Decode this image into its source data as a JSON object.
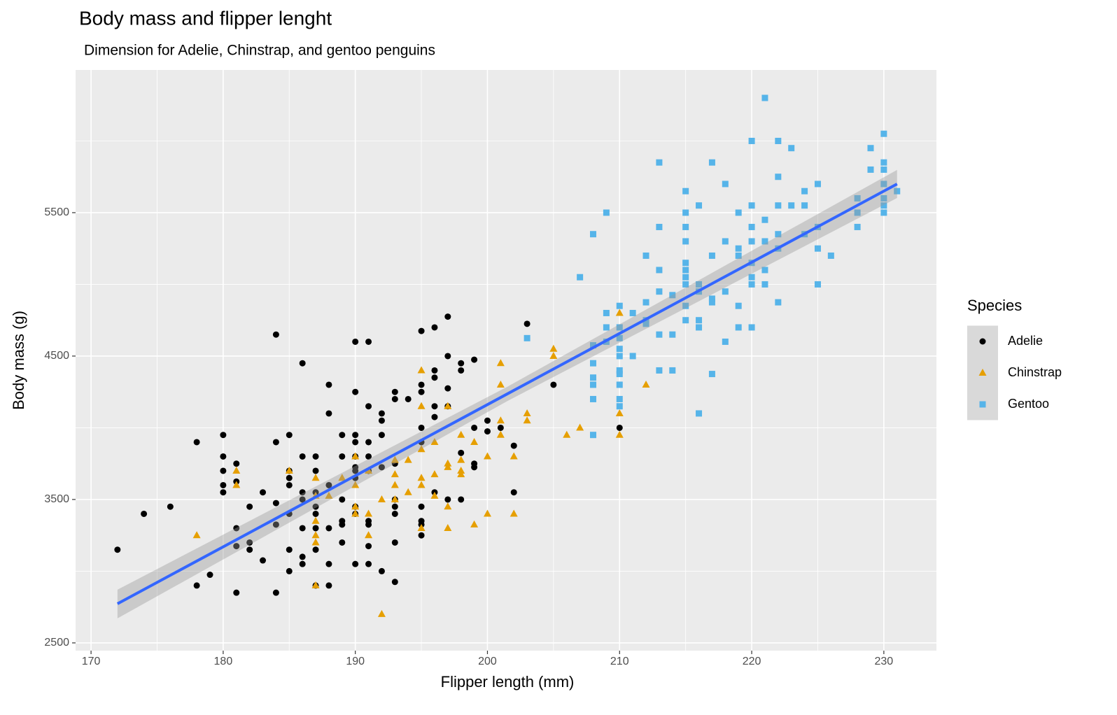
{
  "chart_data": {
    "type": "scatter",
    "title": "Body mass and flipper lenght",
    "subtitle": "Dimension for Adelie, Chinstrap, and gentoo penguins",
    "x_label": "Flipper length (mm)",
    "y_label": "Body mass (g)",
    "legend_title": "Species",
    "legend_position": "right",
    "grid": true,
    "xlim": [
      168.83,
      233.98
    ],
    "ylim": [
      2446,
      6495
    ],
    "xticks": [
      170,
      180,
      190,
      200,
      210,
      220,
      230
    ],
    "yticks": [
      2500,
      3500,
      4500,
      5500
    ],
    "xminor": [
      175,
      185,
      195,
      205,
      215,
      225
    ],
    "yminor": [
      3000,
      4000,
      5000,
      6000
    ],
    "series": [
      {
        "name": "Adelie",
        "color": "#000000",
        "shape": "circle",
        "x": [
          172,
          174,
          176,
          178,
          178,
          179,
          180,
          180,
          180,
          180,
          180,
          181,
          181,
          181,
          181,
          181,
          182,
          182,
          182,
          183,
          183,
          184,
          184,
          184,
          184,
          184,
          185,
          185,
          185,
          185,
          185,
          185,
          185,
          186,
          186,
          186,
          186,
          186,
          186,
          186,
          187,
          187,
          187,
          187,
          187,
          187,
          187,
          187,
          188,
          188,
          188,
          188,
          188,
          188,
          189,
          189,
          189,
          189,
          189,
          189,
          190,
          190,
          190,
          190,
          190,
          190,
          190,
          190,
          190,
          190,
          190,
          191,
          191,
          191,
          191,
          191,
          191,
          191,
          191,
          191,
          192,
          192,
          192,
          192,
          192,
          193,
          193,
          193,
          193,
          193,
          193,
          193,
          193,
          194,
          195,
          195,
          195,
          195,
          195,
          195,
          195,
          195,
          195,
          196,
          196,
          196,
          196,
          196,
          196,
          197,
          197,
          197,
          197,
          197,
          198,
          198,
          198,
          198,
          199,
          199,
          199,
          199,
          200,
          200,
          201,
          202,
          202,
          203,
          205,
          210
        ],
        "values": [
          3150,
          3400,
          3450,
          3900,
          2900,
          2975,
          3950,
          3800,
          3700,
          3600,
          3550,
          3750,
          3625,
          3300,
          3175,
          2850,
          3450,
          3200,
          3150,
          3550,
          3075,
          4650,
          3900,
          3475,
          3325,
          2850,
          3950,
          3700,
          3650,
          3600,
          3400,
          3150,
          3000,
          4450,
          3800,
          3550,
          3500,
          3300,
          3100,
          3050,
          3800,
          3700,
          3550,
          3450,
          3400,
          3300,
          3150,
          2900,
          4300,
          4100,
          3600,
          3300,
          3050,
          2900,
          3950,
          3800,
          3500,
          3350,
          3325,
          3200,
          4600,
          4250,
          3950,
          3900,
          3800,
          3725,
          3700,
          3650,
          3450,
          3400,
          3050,
          4600,
          4150,
          3900,
          3800,
          3700,
          3350,
          3325,
          3175,
          3050,
          4100,
          4050,
          3950,
          3725,
          3000,
          4250,
          4200,
          3750,
          3500,
          3450,
          3400,
          3200,
          2925,
          4200,
          4675,
          4300,
          4250,
          4000,
          3900,
          3450,
          3350,
          3325,
          3250,
          4700,
          4400,
          4350,
          4150,
          4075,
          3550,
          4775,
          4500,
          4275,
          4150,
          3500,
          4450,
          4400,
          3825,
          3500,
          4475,
          4000,
          3750,
          3725,
          4050,
          3975,
          4000,
          3875,
          3550,
          4725,
          4300,
          4000
        ]
      },
      {
        "name": "Chinstrap",
        "color": "#E69F00",
        "shape": "triangle",
        "x": [
          178,
          181,
          181,
          185,
          187,
          187,
          187,
          187,
          187,
          187,
          188,
          189,
          190,
          190,
          190,
          190,
          191,
          191,
          191,
          192,
          192,
          193,
          193,
          193,
          193,
          194,
          194,
          195,
          195,
          195,
          195,
          195,
          195,
          196,
          196,
          196,
          197,
          197,
          197,
          197,
          197,
          198,
          198,
          198,
          198,
          199,
          199,
          200,
          200,
          201,
          201,
          201,
          201,
          202,
          202,
          203,
          203,
          205,
          205,
          206,
          207,
          210,
          210,
          210,
          212
        ],
        "values": [
          3250,
          3700,
          3600,
          3700,
          3650,
          3525,
          3350,
          3250,
          3200,
          2900,
          3525,
          3650,
          3800,
          3600,
          3450,
          3400,
          3700,
          3400,
          3250,
          3500,
          2700,
          3775,
          3675,
          3600,
          3500,
          3775,
          3550,
          4400,
          4150,
          3850,
          3650,
          3600,
          3300,
          3900,
          3675,
          3525,
          4150,
          3750,
          3725,
          3450,
          3300,
          3950,
          3775,
          3700,
          3675,
          3900,
          3325,
          3800,
          3400,
          4450,
          4300,
          4050,
          3950,
          3800,
          3400,
          4100,
          4050,
          4550,
          4500,
          3950,
          4000,
          4800,
          4100,
          3950,
          4300
        ]
      },
      {
        "name": "Gentoo",
        "color": "#56B4E9",
        "shape": "square",
        "x": [
          203,
          207,
          208,
          208,
          208,
          208,
          208,
          208,
          208,
          209,
          209,
          209,
          209,
          210,
          210,
          210,
          210,
          210,
          210,
          210,
          210,
          210,
          210,
          211,
          211,
          212,
          212,
          212,
          212,
          213,
          213,
          213,
          213,
          213,
          213,
          214,
          214,
          214,
          215,
          215,
          215,
          215,
          215,
          215,
          215,
          215,
          215,
          215,
          216,
          216,
          216,
          216,
          216,
          216,
          217,
          217,
          217,
          217,
          217,
          218,
          218,
          218,
          218,
          219,
          219,
          219,
          219,
          219,
          220,
          220,
          220,
          220,
          220,
          220,
          220,
          220,
          221,
          221,
          221,
          221,
          221,
          222,
          222,
          222,
          222,
          222,
          222,
          223,
          223,
          224,
          224,
          224,
          225,
          225,
          225,
          225,
          226,
          228,
          228,
          228,
          229,
          229,
          230,
          230,
          230,
          230,
          230,
          230,
          230,
          231
        ],
        "values": [
          4625,
          5050,
          5350,
          4575,
          4450,
          4350,
          4300,
          4200,
          3950,
          5500,
          4800,
          4700,
          4600,
          4850,
          4700,
          4625,
          4550,
          4500,
          4400,
          4375,
          4300,
          4200,
          4150,
          4800,
          4500,
          5200,
          4875,
          4750,
          4725,
          5850,
          5400,
          5100,
          4950,
          4650,
          4400,
          4925,
          4650,
          4400,
          5650,
          5500,
          5400,
          5300,
          5150,
          5100,
          5050,
          5000,
          4850,
          4750,
          5550,
          5000,
          4950,
          4750,
          4700,
          4100,
          5850,
          5200,
          4900,
          4875,
          4375,
          5700,
          5300,
          4950,
          4600,
          5500,
          5250,
          5200,
          4850,
          4700,
          6000,
          5550,
          5400,
          5300,
          5150,
          5050,
          5000,
          4700,
          6300,
          5450,
          5300,
          5100,
          5000,
          6000,
          5750,
          5550,
          5350,
          5250,
          4875,
          5950,
          5550,
          5650,
          5550,
          5350,
          5700,
          5400,
          5250,
          5000,
          5200,
          5600,
          5500,
          5400,
          5950,
          5800,
          6050,
          5850,
          5800,
          5700,
          5600,
          5550,
          5500,
          5650
        ]
      }
    ],
    "fit": {
      "color": "#3366FF",
      "band_color": "#999999",
      "x": [
        172,
        201.5,
        231
      ],
      "y": [
        2773,
        4236,
        5700
      ],
      "lower": [
        2671,
        4186,
        5602
      ],
      "upper": [
        2871,
        4286,
        5798
      ]
    }
  }
}
